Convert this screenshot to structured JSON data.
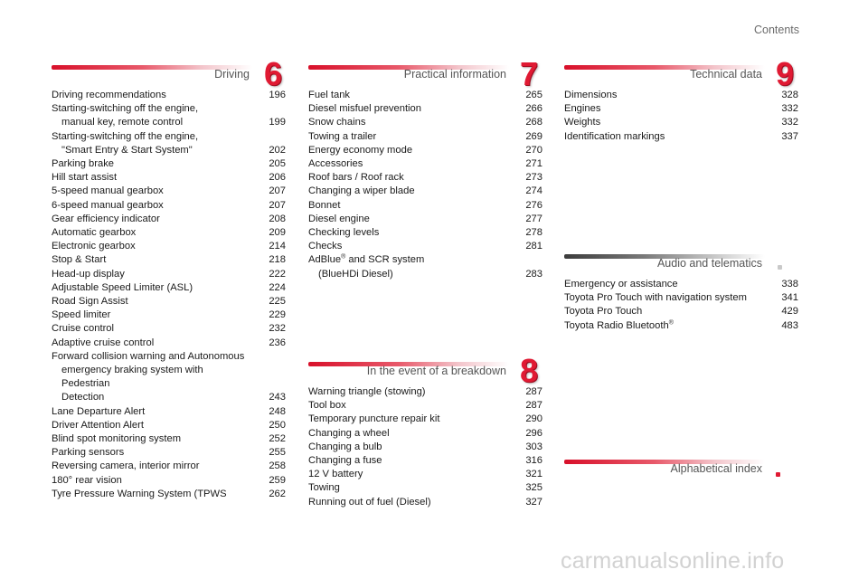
{
  "page_label": "Contents",
  "sections": {
    "driving": {
      "title": "Driving",
      "number": "6",
      "entries": [
        {
          "title": "Driving recommendations",
          "page": "196"
        },
        {
          "title": "Starting-switching off the engine,",
          "title2": "manual key, remote control",
          "page": "199"
        },
        {
          "title": "Starting-switching off the engine,",
          "title2": "\"Smart Entry & Start System\"",
          "page": "202"
        },
        {
          "title": "Parking brake",
          "page": "205"
        },
        {
          "title": "Hill start assist",
          "page": "206"
        },
        {
          "title": "5-speed manual gearbox",
          "page": "207"
        },
        {
          "title": "6-speed manual gearbox",
          "page": "207"
        },
        {
          "title": "Gear efficiency indicator",
          "page": "208"
        },
        {
          "title": "Automatic gearbox",
          "page": "209"
        },
        {
          "title": "Electronic gearbox",
          "page": "214"
        },
        {
          "title": "Stop & Start",
          "page": "218"
        },
        {
          "title": "Head-up display",
          "page": "222"
        },
        {
          "title": "Adjustable Speed Limiter (ASL)",
          "page": "224"
        },
        {
          "title": "Road Sign Assist",
          "page": "225"
        },
        {
          "title": "Speed limiter",
          "page": "229"
        },
        {
          "title": "Cruise control",
          "page": "232"
        },
        {
          "title": "Adaptive cruise control",
          "page": "236"
        },
        {
          "title": "Forward collision warning and Autonomous",
          "title2": "emergency braking system with Pedestrian",
          "title3": "Detection",
          "page": "243"
        },
        {
          "title": "Lane Departure Alert",
          "page": "248"
        },
        {
          "title": "Driver Attention Alert",
          "page": "250"
        },
        {
          "title": "Blind spot monitoring system",
          "page": "252"
        },
        {
          "title": "Parking sensors",
          "page": "255"
        },
        {
          "title": "Reversing camera, interior mirror",
          "page": "258"
        },
        {
          "title": "180° rear vision",
          "page": "259"
        },
        {
          "title": "Tyre Pressure Warning System (TPWS",
          "page": "262"
        }
      ]
    },
    "practical": {
      "title": "Practical information",
      "number": "7",
      "entries": [
        {
          "title": "Fuel tank",
          "page": "265"
        },
        {
          "title": "Diesel misfuel prevention",
          "page": "266"
        },
        {
          "title": "Snow chains",
          "page": "268"
        },
        {
          "title": "Towing a trailer",
          "page": "269"
        },
        {
          "title": "Energy economy mode",
          "page": "270"
        },
        {
          "title": "Accessories",
          "page": "271"
        },
        {
          "title": "Roof bars / Roof rack",
          "page": "273"
        },
        {
          "title": "Changing a wiper blade",
          "page": "274"
        },
        {
          "title": "Bonnet",
          "page": "276"
        },
        {
          "title": "Diesel engine",
          "page": "277"
        },
        {
          "title": "Checking levels",
          "page": "278"
        },
        {
          "title": "Checks",
          "page": "281"
        },
        {
          "title": "AdBlue",
          "sup": "®",
          "title_rest": " and SCR system",
          "title2": "(BlueHDi Diesel)",
          "page": "283"
        }
      ]
    },
    "breakdown": {
      "title": "In the event of a breakdown",
      "number": "8",
      "entries": [
        {
          "title": "Warning triangle (stowing)",
          "page": "287"
        },
        {
          "title": "Tool box",
          "page": "287"
        },
        {
          "title": "Temporary puncture repair kit",
          "page": "290"
        },
        {
          "title": "Changing a wheel",
          "page": "296"
        },
        {
          "title": "Changing a bulb",
          "page": "303"
        },
        {
          "title": "Changing a fuse",
          "page": "316"
        },
        {
          "title": "12 V battery",
          "page": "321"
        },
        {
          "title": "Towing",
          "page": "325"
        },
        {
          "title": "Running out of fuel (Diesel)",
          "page": "327"
        }
      ]
    },
    "technical": {
      "title": "Technical data",
      "number": "9",
      "entries": [
        {
          "title": "Dimensions",
          "page": "328"
        },
        {
          "title": "Engines",
          "page": "332"
        },
        {
          "title": "Weights",
          "page": "332"
        },
        {
          "title": "Identification markings",
          "page": "337"
        }
      ]
    },
    "audio": {
      "title": "Audio and telematics",
      "entries": [
        {
          "title": "Emergency or assistance",
          "page": "338"
        },
        {
          "title": "Toyota Pro Touch with navigation system",
          "page": "341"
        },
        {
          "title": "Toyota Pro Touch",
          "page": "429"
        },
        {
          "title": "Toyota Radio Bluetooth",
          "sup": "®",
          "page": "483"
        }
      ]
    },
    "index": {
      "title": "Alphabetical index"
    }
  },
  "watermark": "carmanualsonline.info",
  "colors": {
    "accent_red": "#e01a33",
    "bar_grey": "#3c3c3c"
  }
}
